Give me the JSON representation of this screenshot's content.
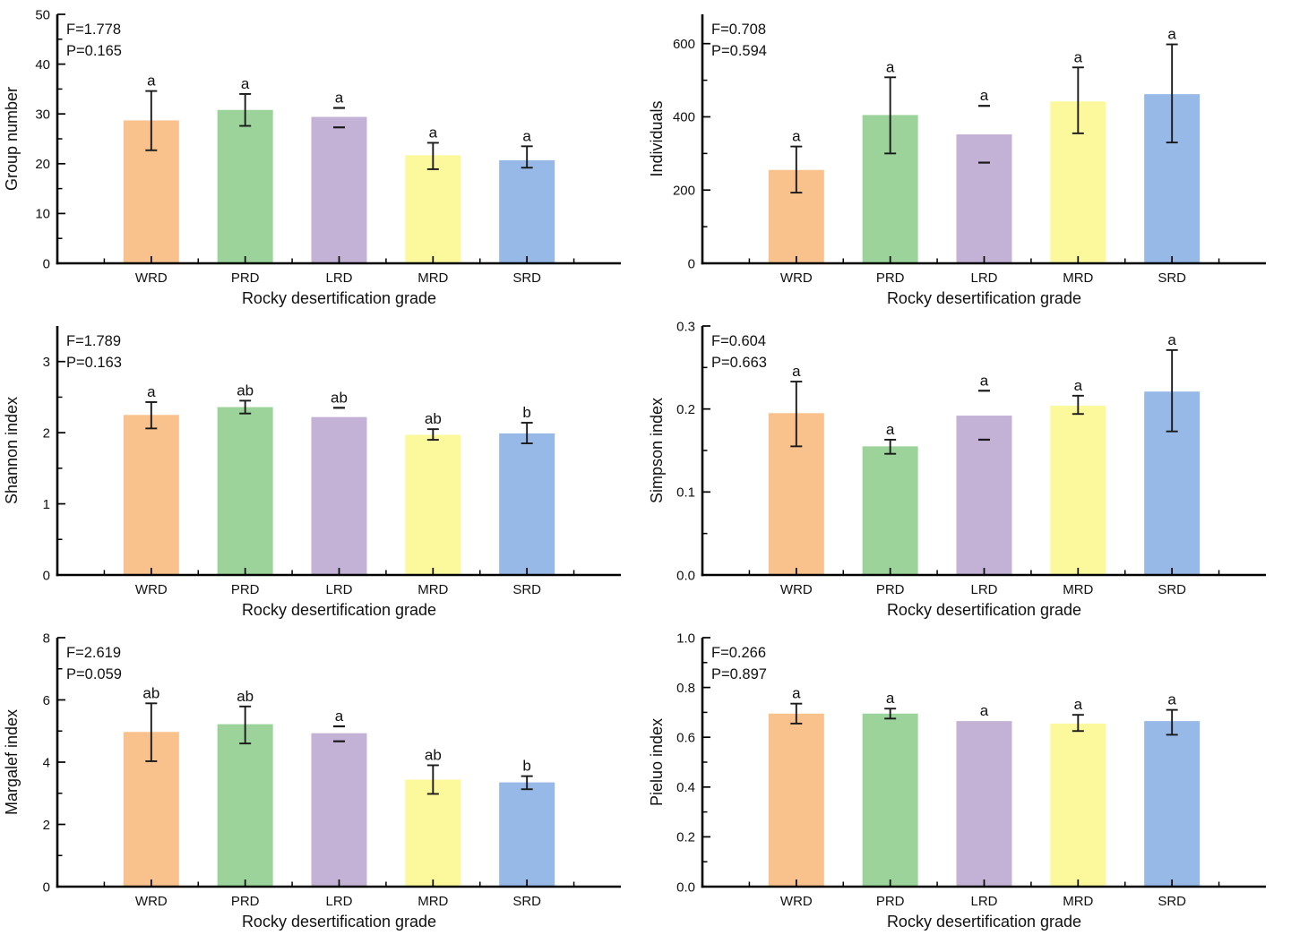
{
  "figure": {
    "bar_colors": [
      "#F9C28C",
      "#9BD39A",
      "#C3B1D6",
      "#FBF99B",
      "#97B9E7"
    ],
    "axis_color": "#000000",
    "error_bar_color": "#1a1a1a",
    "x_categories": [
      "WRD",
      "PRD",
      "LRD",
      "MRD",
      "SRD"
    ],
    "x_axis_title": "Rocky desertification grade"
  },
  "chart_data": [
    {
      "type": "bar",
      "title": "",
      "ylabel": "Group number",
      "xlabel": "Rocky desertification grade",
      "categories": [
        "WRD",
        "PRD",
        "LRD",
        "MRD",
        "SRD"
      ],
      "values": [
        28.7,
        30.8,
        29.4,
        21.7,
        20.7
      ],
      "error_plus": [
        5.9,
        3.2,
        1.8,
        2.5,
        2.8
      ],
      "error_minus": [
        6.0,
        3.2,
        2.1,
        2.8,
        1.5
      ],
      "error_style": [
        "line",
        "line",
        "caps",
        "line",
        "line"
      ],
      "sig_letters": [
        "a",
        "a",
        "a",
        "a",
        "a"
      ],
      "annotation_f": "F=1.778",
      "annotation_p": "P=0.165",
      "ylim": [
        0,
        50
      ],
      "ytick_values": [
        0,
        10,
        20,
        30,
        40,
        50
      ],
      "ytick_labels": [
        "0",
        "10",
        "20",
        "30",
        "40",
        "50"
      ],
      "yminor_values": [
        5,
        15,
        25,
        35,
        45
      ],
      "grid": "off",
      "legend": "none"
    },
    {
      "type": "bar",
      "title": "",
      "ylabel": "Individuals",
      "xlabel": "Rocky desertification grade",
      "categories": [
        "WRD",
        "PRD",
        "LRD",
        "MRD",
        "SRD"
      ],
      "values": [
        255,
        405,
        352,
        442,
        462
      ],
      "error_plus": [
        64,
        103,
        78,
        93,
        136
      ],
      "error_minus": [
        62,
        105,
        77,
        87,
        132
      ],
      "error_style": [
        "line",
        "line",
        "caps",
        "line",
        "line"
      ],
      "sig_letters": [
        "a",
        "a",
        "a",
        "a",
        "a"
      ],
      "annotation_f": "F=0.708",
      "annotation_p": "P=0.594",
      "ylim": [
        0,
        680
      ],
      "ytick_values": [
        0,
        200,
        400,
        600
      ],
      "ytick_labels": [
        "0",
        "200",
        "400",
        "600"
      ],
      "yminor_values": [
        100,
        300,
        500
      ],
      "grid": "off",
      "legend": "none"
    },
    {
      "type": "bar",
      "title": "",
      "ylabel": "Shannon index",
      "xlabel": "Rocky desertification grade",
      "categories": [
        "WRD",
        "PRD",
        "LRD",
        "MRD",
        "SRD"
      ],
      "values": [
        2.25,
        2.36,
        2.22,
        1.97,
        1.99
      ],
      "error_plus": [
        0.18,
        0.09,
        0.13,
        0.08,
        0.15
      ],
      "error_minus": [
        0.19,
        0.09,
        0.0,
        0.07,
        0.14
      ],
      "error_style": [
        "line",
        "line",
        "topcap",
        "line",
        "line"
      ],
      "sig_letters": [
        "a",
        "ab",
        "ab",
        "ab",
        "b"
      ],
      "annotation_f": "F=1.789",
      "annotation_p": "P=0.163",
      "ylim": [
        0,
        3.5
      ],
      "ytick_values": [
        0,
        1,
        2,
        3
      ],
      "ytick_labels": [
        "0",
        "1",
        "2",
        "3"
      ],
      "yminor_values": [
        0.5,
        1.5,
        2.5
      ],
      "grid": "off",
      "legend": "none"
    },
    {
      "type": "bar",
      "title": "",
      "ylabel": "Simpson index",
      "xlabel": "Rocky desertification grade",
      "categories": [
        "WRD",
        "PRD",
        "LRD",
        "MRD",
        "SRD"
      ],
      "values": [
        0.195,
        0.155,
        0.192,
        0.204,
        0.221
      ],
      "error_plus": [
        0.038,
        0.008,
        0.03,
        0.012,
        0.05
      ],
      "error_minus": [
        0.04,
        0.009,
        0.029,
        0.01,
        0.048
      ],
      "error_style": [
        "line",
        "line",
        "caps",
        "line",
        "line"
      ],
      "sig_letters": [
        "a",
        "a",
        "a",
        "a",
        "a"
      ],
      "annotation_f": "F=0.604",
      "annotation_p": "P=0.663",
      "ylim": [
        0,
        0.3
      ],
      "ytick_values": [
        0,
        0.1,
        0.2,
        0.3
      ],
      "ytick_labels": [
        "0.0",
        "0.1",
        "0.2",
        "0.3"
      ],
      "yminor_values": [
        0.05,
        0.15,
        0.25
      ],
      "grid": "off",
      "legend": "none"
    },
    {
      "type": "bar",
      "title": "",
      "ylabel": "Margalef index",
      "xlabel": "Rocky desertification grade",
      "categories": [
        "WRD",
        "PRD",
        "LRD",
        "MRD",
        "SRD"
      ],
      "values": [
        4.97,
        5.22,
        4.93,
        3.44,
        3.35
      ],
      "error_plus": [
        0.92,
        0.57,
        0.22,
        0.46,
        0.2
      ],
      "error_minus": [
        0.94,
        0.62,
        0.26,
        0.46,
        0.22
      ],
      "error_style": [
        "line",
        "line",
        "caps",
        "line",
        "line"
      ],
      "sig_letters": [
        "ab",
        "ab",
        "a",
        "ab",
        "b"
      ],
      "annotation_f": "F=2.619",
      "annotation_p": "P=0.059",
      "ylim": [
        0,
        8
      ],
      "ytick_values": [
        0,
        2,
        4,
        6,
        8
      ],
      "ytick_labels": [
        "0",
        "2",
        "4",
        "6",
        "8"
      ],
      "yminor_values": [
        1,
        3,
        5,
        7
      ],
      "grid": "off",
      "legend": "none"
    },
    {
      "type": "bar",
      "title": "",
      "ylabel": "Pieluo index",
      "xlabel": "Rocky desertification grade",
      "categories": [
        "WRD",
        "PRD",
        "LRD",
        "MRD",
        "SRD"
      ],
      "values": [
        0.695,
        0.695,
        0.665,
        0.655,
        0.665
      ],
      "error_plus": [
        0.04,
        0.02,
        0,
        0.035,
        0.045
      ],
      "error_minus": [
        0.04,
        0.02,
        0,
        0.03,
        0.055
      ],
      "error_style": [
        "line",
        "line",
        "none",
        "line",
        "line"
      ],
      "sig_letters": [
        "a",
        "a",
        "a",
        "a",
        "a"
      ],
      "annotation_f": "F=0.266",
      "annotation_p": "P=0.897",
      "ylim": [
        0,
        1.0
      ],
      "ytick_values": [
        0,
        0.2,
        0.4,
        0.6,
        0.8,
        1.0
      ],
      "ytick_labels": [
        "0.0",
        "0.2",
        "0.4",
        "0.6",
        "0.8",
        "1.0"
      ],
      "yminor_values": [
        0.1,
        0.3,
        0.5,
        0.7,
        0.9
      ],
      "grid": "off",
      "legend": "none"
    }
  ]
}
